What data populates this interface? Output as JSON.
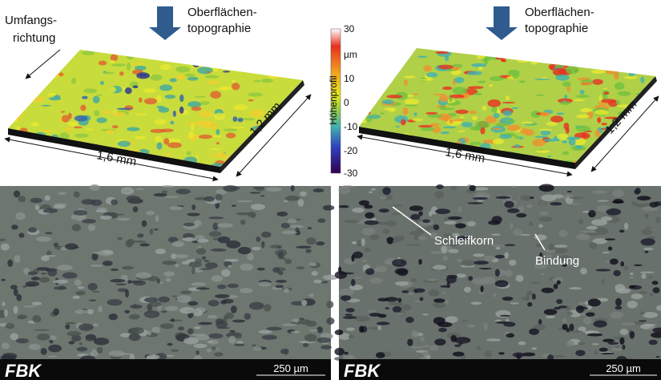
{
  "left_panel": {
    "direction_label": [
      "Umfangs-",
      "richtung"
    ],
    "topography_label": [
      "Oberflächen-",
      "topographie"
    ],
    "x_dimension": "1,6 mm",
    "y_dimension": "1,2 mm"
  },
  "right_panel": {
    "topography_label": [
      "Oberflächen-",
      "topographie"
    ],
    "x_dimension": "1,6 mm",
    "y_dimension": "1,2 mm"
  },
  "colorbar": {
    "title": "Höhenprofil",
    "unit": "µm",
    "ticks": [
      "30",
      "10",
      "0",
      "-10",
      "-20",
      "-30"
    ]
  },
  "micrographs": {
    "left": {
      "logo": "FBK",
      "scale": "250 µm"
    },
    "right": {
      "logo": "FBK",
      "scale": "250 µm",
      "annotations": [
        "Schleifkorn",
        "Bindung"
      ]
    }
  }
}
